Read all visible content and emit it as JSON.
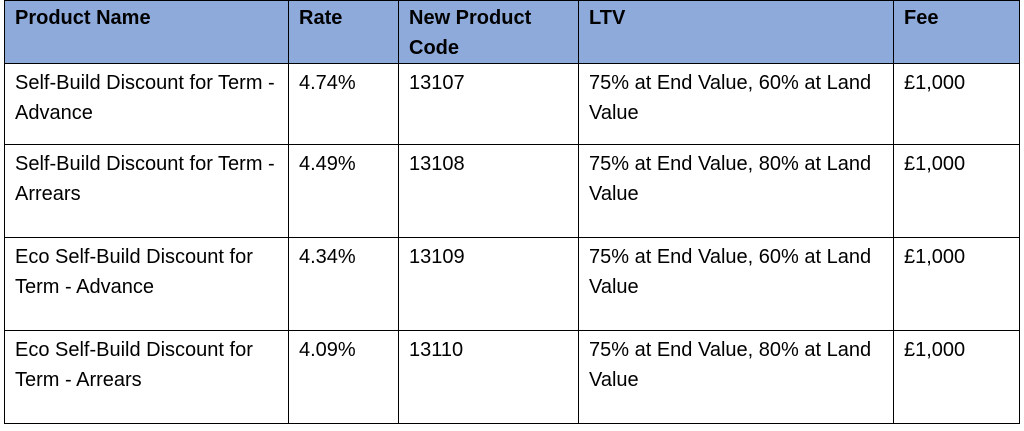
{
  "table": {
    "headers": [
      "Product Name",
      "Rate",
      "New Product Code",
      "LTV",
      "Fee"
    ],
    "rows": [
      [
        "Self-Build Discount for Term - Advance",
        "4.74%",
        "13107",
        "75% at End Value, 60% at Land Value",
        "£1,000"
      ],
      [
        "Self-Build Discount for Term - Arrears",
        "4.49%",
        "13108",
        "75% at End Value, 80% at Land Value",
        "£1,000"
      ],
      [
        "Eco Self-Build Discount for Term - Advance",
        "4.34%",
        "13109",
        "75% at End Value, 60% at Land Value",
        "£1,000"
      ],
      [
        "Eco Self-Build Discount for Term - Arrears",
        "4.09%",
        "13110",
        "75% at End Value, 80% at Land Value",
        "£1,000"
      ]
    ]
  },
  "colors": {
    "header_background": "#8eaadb",
    "border": "#000000",
    "text": "#000000"
  }
}
